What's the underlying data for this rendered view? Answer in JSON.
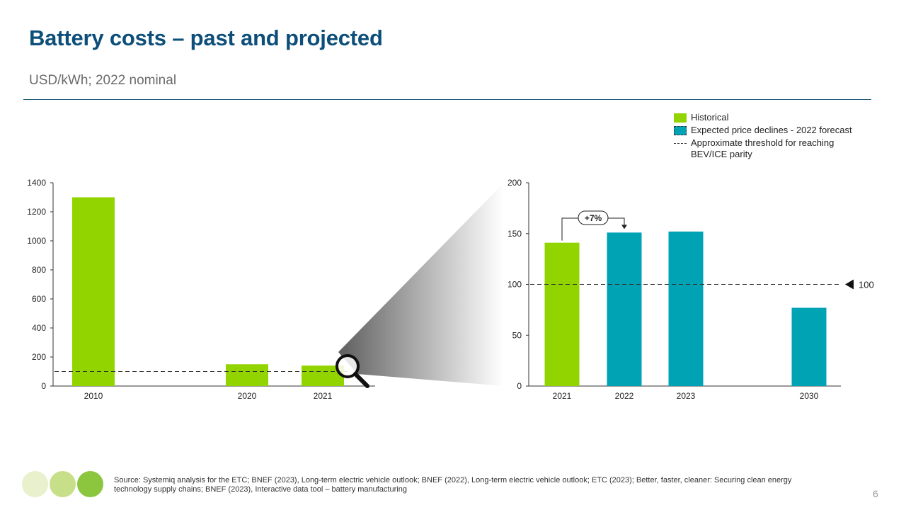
{
  "header": {
    "title": "Battery costs – past and projected",
    "subtitle": "USD/kWh;  2022 nominal"
  },
  "legend": {
    "historical": "Historical",
    "forecast": "Expected price declines - 2022 forecast",
    "threshold": "Approximate threshold for reaching BEV/ICE parity"
  },
  "colors": {
    "historical": "#92d400",
    "forecast": "#00a3b4",
    "title": "#0d4f7a",
    "logo": [
      "#e6f0c8",
      "#c8e08c",
      "#8cc63f"
    ]
  },
  "chart_data": [
    {
      "type": "bar",
      "categories": [
        "2010",
        "2020",
        "2021"
      ],
      "series": [
        {
          "values": [
            1300,
            150,
            141
          ],
          "kinds": [
            "historical",
            "historical",
            "historical"
          ]
        }
      ],
      "ylim": [
        0,
        1400
      ],
      "yticks": [
        "0",
        "200",
        "400",
        "600",
        "800",
        "1000",
        "1200",
        "1400"
      ],
      "threshold": 100
    },
    {
      "type": "bar",
      "categories": [
        "2021",
        "2022",
        "2023",
        "2030"
      ],
      "series": [
        {
          "values": [
            141,
            151,
            152,
            77
          ],
          "kinds": [
            "historical",
            "forecast",
            "forecast",
            "forecast"
          ]
        }
      ],
      "ylim": [
        0,
        200
      ],
      "yticks": [
        "0",
        "50",
        "100",
        "150",
        "200"
      ],
      "threshold": 100,
      "threshold_label": "100",
      "annotation": "+7%"
    }
  ],
  "footer": {
    "source": "Source: Systemiq analysis for the ETC;  BNEF (2023), Long-term electric vehicle outlook; BNEF (2022), Long-term electric vehicle outlook; ETC  (2023); Better, faster, cleaner: Securing clean energy technology supply chains; BNEF (2023), Interactive data tool – battery manufacturing",
    "page_number": "6"
  }
}
